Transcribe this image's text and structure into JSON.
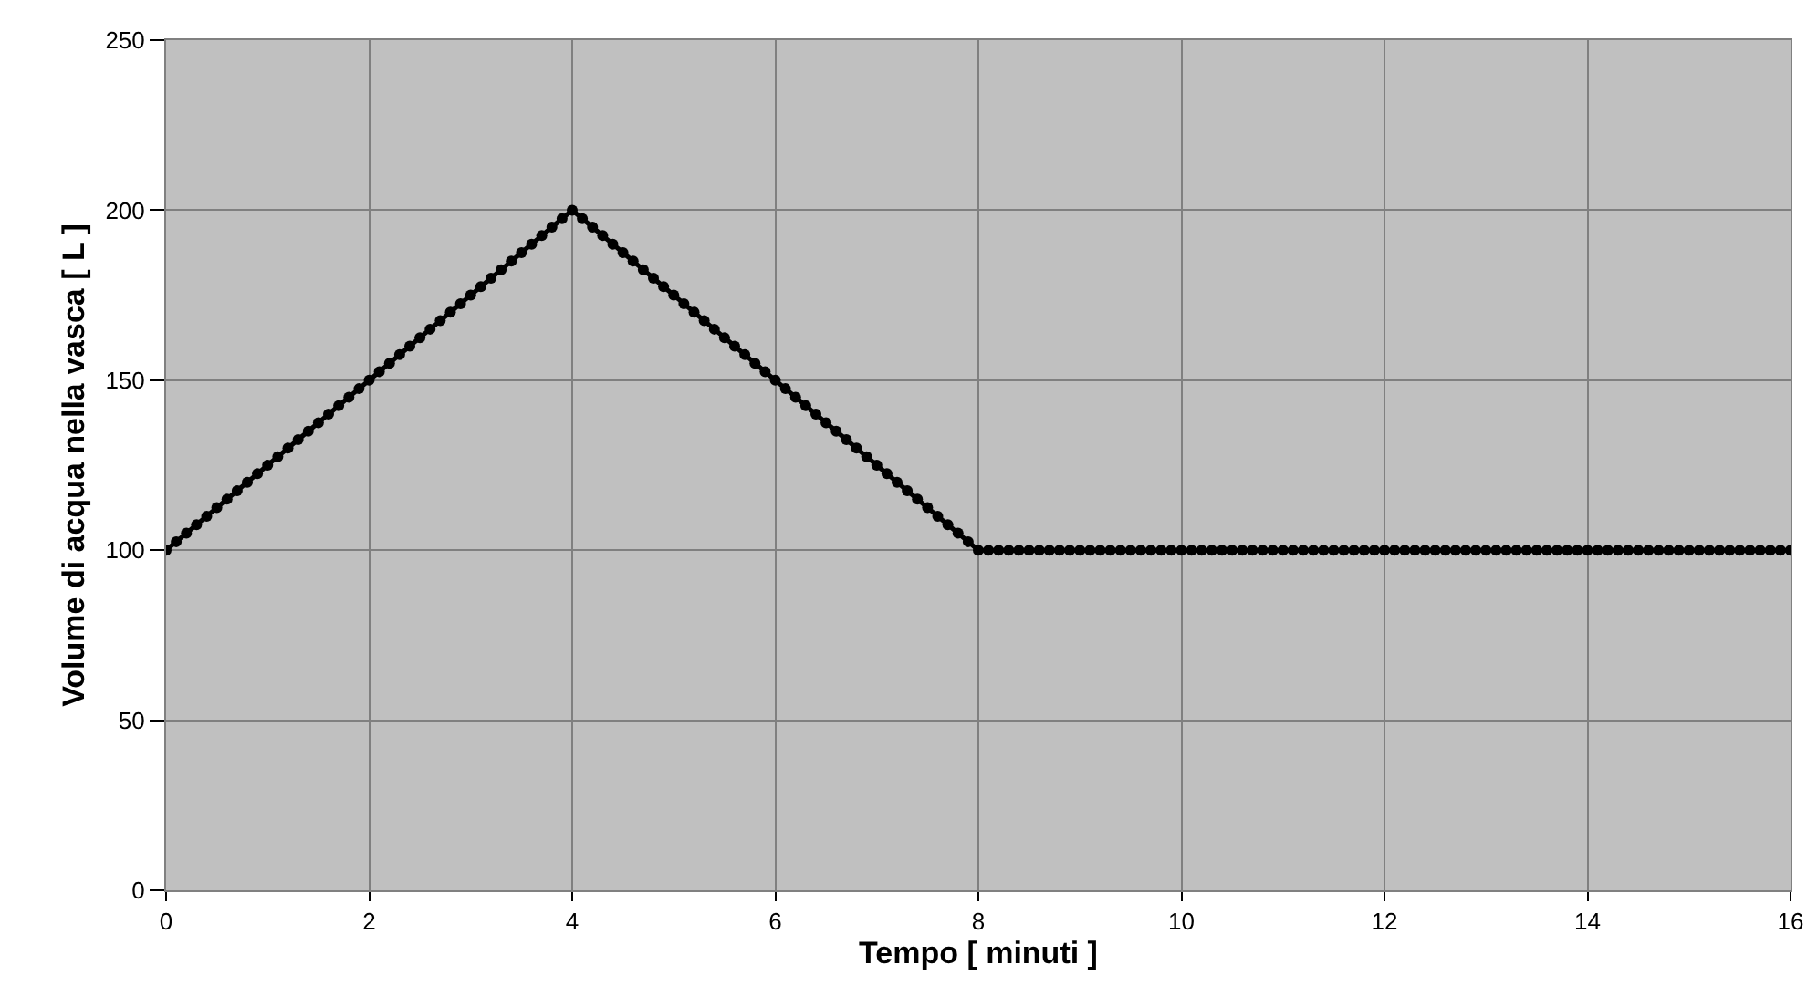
{
  "chart_data": {
    "type": "line",
    "xlabel": "Tempo [ minuti ]",
    "ylabel": "Volume di acqua nella vasca [ L ]",
    "x": [
      0,
      0.1,
      0.2,
      0.3,
      0.4,
      0.5,
      0.6,
      0.7,
      0.8,
      0.9,
      1,
      1.1,
      1.2,
      1.3,
      1.4,
      1.5,
      1.6,
      1.7,
      1.8,
      1.9,
      2,
      2.1,
      2.2,
      2.3,
      2.4,
      2.5,
      2.6,
      2.7,
      2.8,
      2.9,
      3,
      3.1,
      3.2,
      3.3,
      3.4,
      3.5,
      3.6,
      3.7,
      3.8,
      3.9,
      4,
      4.1,
      4.2,
      4.3,
      4.4,
      4.5,
      4.6,
      4.7,
      4.8,
      4.9,
      5,
      5.1,
      5.2,
      5.3,
      5.4,
      5.5,
      5.6,
      5.7,
      5.8,
      5.9,
      6,
      6.1,
      6.2,
      6.3,
      6.4,
      6.5,
      6.6,
      6.7,
      6.8,
      6.9,
      7,
      7.1,
      7.2,
      7.3,
      7.4,
      7.5,
      7.6,
      7.7,
      7.8,
      7.9,
      8,
      8.1,
      8.2,
      8.3,
      8.4,
      8.5,
      8.6,
      8.7,
      8.8,
      8.9,
      9,
      9.1,
      9.2,
      9.3,
      9.4,
      9.5,
      9.6,
      9.7,
      9.8,
      9.9,
      10,
      10.1,
      10.2,
      10.3,
      10.4,
      10.5,
      10.6,
      10.7,
      10.8,
      10.9,
      11,
      11.1,
      11.2,
      11.3,
      11.4,
      11.5,
      11.6,
      11.7,
      11.8,
      11.9,
      12,
      12.1,
      12.2,
      12.3,
      12.4,
      12.5,
      12.6,
      12.7,
      12.8,
      12.9,
      13,
      13.1,
      13.2,
      13.3,
      13.4,
      13.5,
      13.6,
      13.7,
      13.8,
      13.9,
      14,
      14.1,
      14.2,
      14.3,
      14.4,
      14.5,
      14.6,
      14.7,
      14.8,
      14.9,
      15,
      15.1,
      15.2,
      15.3,
      15.4,
      15.5,
      15.6,
      15.7,
      15.8,
      15.9,
      16
    ],
    "series": [
      {
        "color": "#000000",
        "values": [
          100,
          102.5,
          105,
          107.5,
          110,
          112.5,
          115,
          117.5,
          120,
          122.5,
          125,
          127.5,
          130,
          132.5,
          135,
          137.5,
          140,
          142.5,
          145,
          147.5,
          150,
          152.5,
          155,
          157.5,
          160,
          162.5,
          165,
          167.5,
          170,
          172.5,
          175,
          177.5,
          180,
          182.5,
          185,
          187.5,
          190,
          192.5,
          195,
          197.5,
          200,
          197.5,
          195,
          192.5,
          190,
          187.5,
          185,
          182.5,
          180,
          177.5,
          175,
          172.5,
          170,
          167.5,
          165,
          162.5,
          160,
          157.5,
          155,
          152.5,
          150,
          147.5,
          145,
          142.5,
          140,
          137.5,
          135,
          132.5,
          130,
          127.5,
          125,
          122.5,
          120,
          117.5,
          115,
          112.5,
          110,
          107.5,
          105,
          102.5,
          100,
          100,
          100,
          100,
          100,
          100,
          100,
          100,
          100,
          100,
          100,
          100,
          100,
          100,
          100,
          100,
          100,
          100,
          100,
          100,
          100,
          100,
          100,
          100,
          100,
          100,
          100,
          100,
          100,
          100,
          100,
          100,
          100,
          100,
          100,
          100,
          100,
          100,
          100,
          100,
          100,
          100,
          100,
          100,
          100,
          100,
          100,
          100,
          100,
          100,
          100,
          100,
          100,
          100,
          100,
          100,
          100,
          100,
          100,
          100,
          100,
          100,
          100,
          100,
          100,
          100,
          100,
          100,
          100,
          100,
          100,
          100,
          100,
          100,
          100,
          100,
          100,
          100,
          100,
          100,
          100
        ]
      }
    ],
    "xlim": [
      0,
      16
    ],
    "xticks": [
      0,
      2,
      4,
      6,
      8,
      10,
      12,
      14,
      16
    ],
    "ylim": [
      0,
      250
    ],
    "yticks": [
      0,
      50,
      100,
      150,
      200,
      250
    ],
    "grid": true,
    "marker": "circle",
    "line_style": "solid"
  }
}
